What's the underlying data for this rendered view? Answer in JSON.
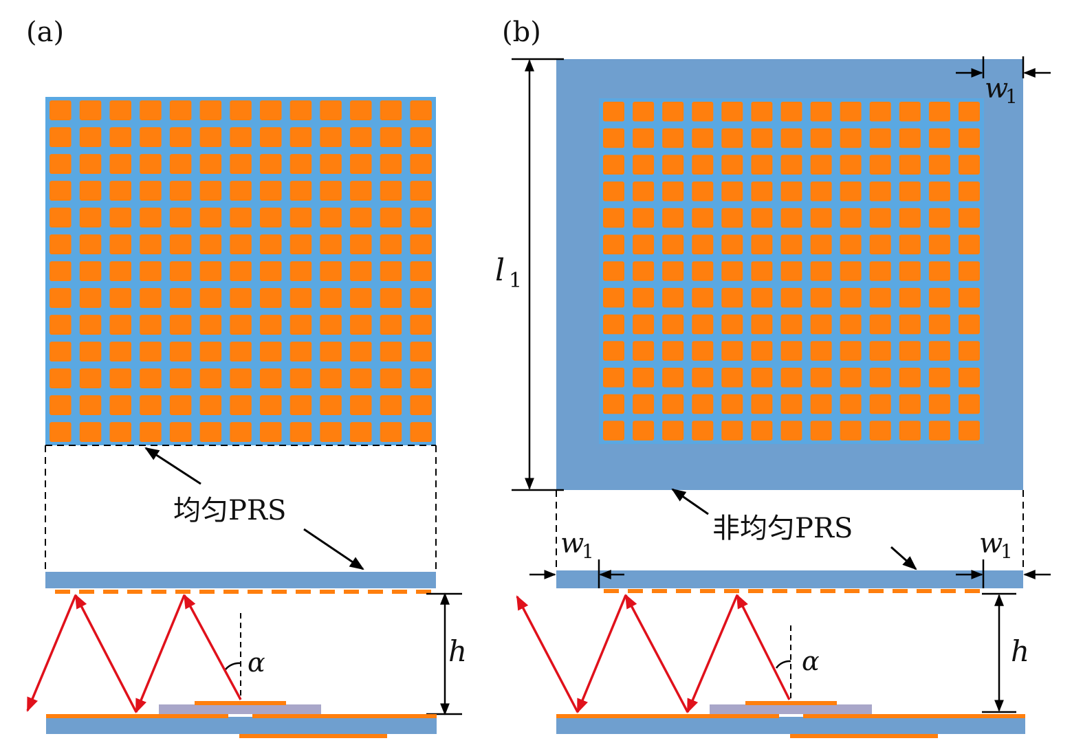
{
  "colors": {
    "substrate": "#6f9fcf",
    "gap": "#5aa8e2",
    "patch": "#ff7f0e",
    "ray": "#e0111b",
    "feed": "#a8a6c9",
    "line": "#000000"
  },
  "panel_a": {
    "label": "(a)",
    "caption": "均匀PRS",
    "angle_label": "α",
    "height_label": "h",
    "grid_rows": 13,
    "grid_cols": 13
  },
  "panel_b": {
    "label": "(b)",
    "caption": "非均匀PRS",
    "angle_label": "α",
    "height_label": "h",
    "length_label": "l",
    "length_sub": "1",
    "width_label": "w",
    "width_sub": "1",
    "grid_rows": 13,
    "grid_cols": 13
  }
}
